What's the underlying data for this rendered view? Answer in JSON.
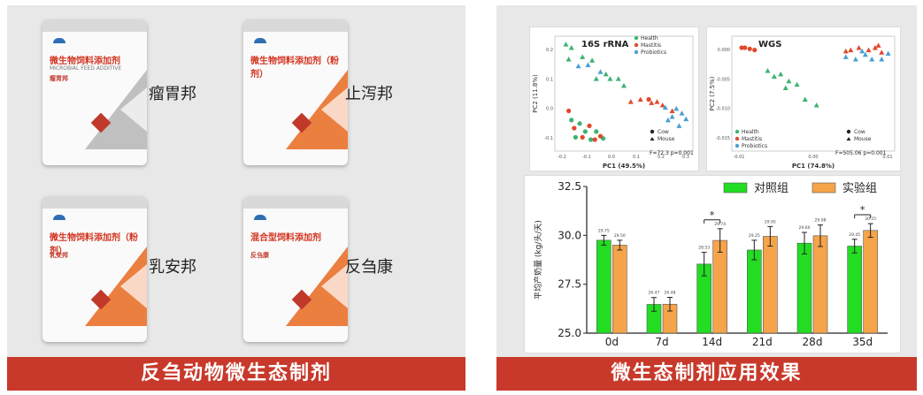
{
  "left": {
    "banner": "反刍动物微生态制剂",
    "products": [
      {
        "label": "瘤胃邦",
        "pkg_title": "微生物饲料添加剂",
        "pkg_en": "MICROBIAL FEED ADDITIVE",
        "pkg_name": "瘤胃邦",
        "color": "#b5b5b5"
      },
      {
        "label": "止泻邦",
        "pkg_title": "微生物饲料添加剂（粉剂）",
        "pkg_name": "",
        "color": "#e8691e"
      },
      {
        "label": "乳安邦",
        "pkg_title": "微生物饲料添加剂（粉剂）",
        "pkg_name": "乳安邦",
        "color": "#e8691e"
      },
      {
        "label": "反刍康",
        "pkg_title": "混合型饲料添加剂",
        "pkg_name": "反刍康",
        "color": "#e8691e"
      }
    ]
  },
  "right": {
    "banner": "微生态制剂应用效果",
    "pca1": {
      "title": "16S rRNA",
      "xlabel": "PC1 (49.5%)",
      "ylabel": "PC2 (11.8%)",
      "stat": "F=72.3 p=0.001",
      "legend": [
        "Health",
        "Mastitis",
        "Probiotics"
      ],
      "shape_legend": [
        "Cow",
        "Mouse"
      ],
      "yticks": [
        "0.2",
        "0.1",
        "0.0",
        "-0.1"
      ],
      "xticks": [
        "-0.2",
        "-0.1",
        "0.0",
        "0.1",
        "0.2",
        "0.3"
      ]
    },
    "pca2": {
      "title": "WGS",
      "xlabel": "PC1 (74.8%)",
      "ylabel": "PC2 (7.5%)",
      "stat": "F=505.06 p=0.001",
      "legend": [
        "Health",
        "Mastitis",
        "Probiotics"
      ],
      "shape_legend": [
        "Cow",
        "Mouse"
      ],
      "yticks": [
        "0.000",
        "-0.005",
        "-0.010",
        "-0.015"
      ],
      "xticks": [
        "-0.01",
        "0.00",
        "0.01"
      ]
    },
    "colors": {
      "health": "#3cb371",
      "mastitis": "#e0492b",
      "probiotics": "#4a9fd6",
      "control": "#22dd22",
      "trial": "#f5a44a"
    },
    "chart_data": {
      "type": "bar",
      "categories": [
        "0d",
        "7d",
        "14d",
        "21d",
        "28d",
        "35d"
      ],
      "series": [
        {
          "name": "对照组",
          "values": [
            29.75,
            26.47,
            28.53,
            29.25,
            29.6,
            29.45
          ]
        },
        {
          "name": "实验组",
          "values": [
            29.5,
            26.48,
            29.74,
            29.95,
            29.98,
            30.25
          ]
        }
      ],
      "value_labels": [
        [
          "29.75",
          "29.50"
        ],
        [
          "26.47",
          "26.48"
        ],
        [
          "28.53",
          "29.74"
        ],
        [
          "29.25",
          "29.95"
        ],
        [
          "29.60",
          "29.98"
        ],
        [
          "29.45",
          "30.25"
        ]
      ],
      "errors": [
        0.25,
        0.35,
        0.6,
        0.5,
        0.55,
        0.35
      ],
      "significance": [
        "",
        "",
        "*",
        "",
        "",
        "*"
      ],
      "ylabel": "平均产奶量 (kg/头/天)",
      "ylim": [
        25.0,
        32.5
      ],
      "yticks": [
        "25.0",
        "27.5",
        "30.0",
        "32.5"
      ],
      "legend_position": "top-right"
    }
  }
}
